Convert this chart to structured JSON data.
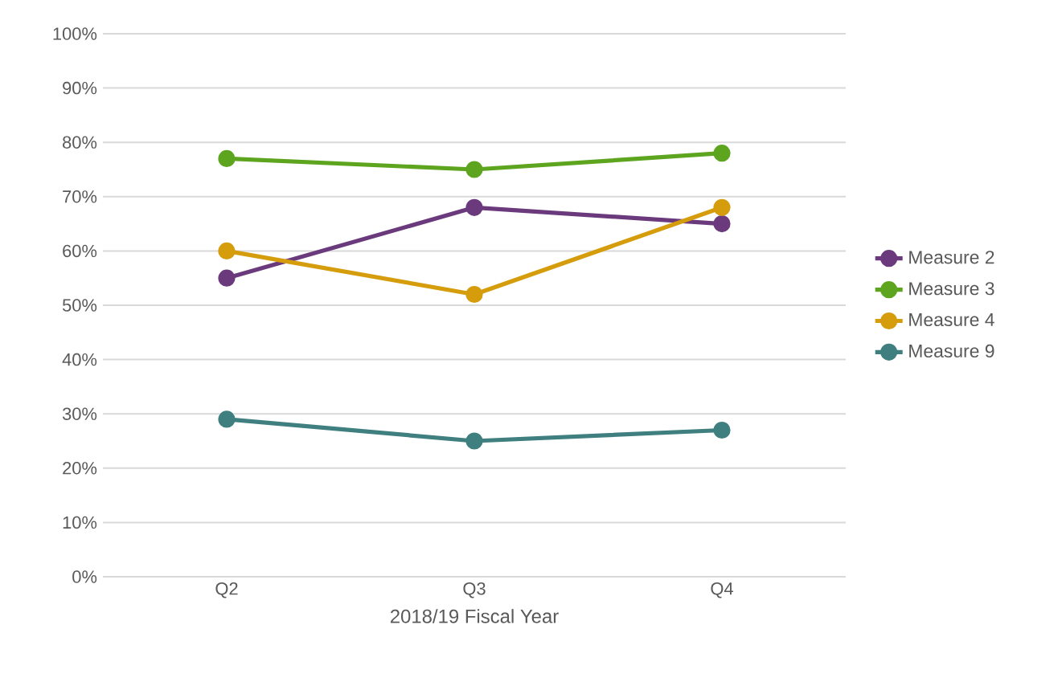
{
  "chart_data": {
    "type": "line",
    "xlabel": "2018/19 Fiscal Year",
    "categories": [
      "Q2",
      "Q3",
      "Q4"
    ],
    "series": [
      {
        "name": "Measure 2",
        "color": "#6b3a7d",
        "values": [
          55,
          68,
          65
        ]
      },
      {
        "name": "Measure 3",
        "color": "#5ea51f",
        "values": [
          77,
          75,
          78
        ]
      },
      {
        "name": "Measure 4",
        "color": "#d59c0c",
        "values": [
          60,
          52,
          68
        ]
      },
      {
        "name": "Measure 9",
        "color": "#3f7f7f",
        "values": [
          29,
          25,
          27
        ]
      }
    ],
    "ylim": [
      0,
      100
    ],
    "yticks": [
      {
        "value": 0,
        "label": "0%"
      },
      {
        "value": 10,
        "label": "10%"
      },
      {
        "value": 20,
        "label": "20%"
      },
      {
        "value": 30,
        "label": "30%"
      },
      {
        "value": 40,
        "label": "40%"
      },
      {
        "value": 50,
        "label": "50%"
      },
      {
        "value": 60,
        "label": "60%"
      },
      {
        "value": 70,
        "label": "70%"
      },
      {
        "value": 80,
        "label": "80%"
      },
      {
        "value": 90,
        "label": "90%"
      },
      {
        "value": 100,
        "label": "100%"
      }
    ],
    "grid": "y",
    "legend": "right",
    "marker": "circle",
    "line_style": "solid"
  }
}
